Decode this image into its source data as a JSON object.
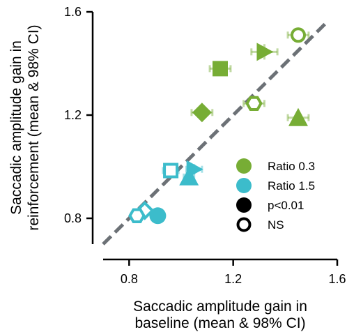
{
  "chart_data": {
    "type": "scatter",
    "xlabel": [
      "Saccadic amplitude gain in",
      "baseline (mean & 98% CI)"
    ],
    "ylabel": [
      "Saccadic amplitude gain in",
      "reinforcement (mean & 98% CI)"
    ],
    "xlim": [
      0.7,
      1.6
    ],
    "ylim": [
      0.7,
      1.6
    ],
    "xticks": [
      0.8,
      1.2,
      1.6
    ],
    "yticks": [
      0.8,
      1.2,
      1.6
    ],
    "xtick_labels": [
      "0.8",
      "1.2",
      "1.6"
    ],
    "ytick_labels": [
      "0.8",
      "1.2",
      "1.6"
    ],
    "identity_line": true,
    "colors": {
      "ratio_0_3": "#77ad35",
      "ratio_1_5": "#3cbccb",
      "identity": "#6c7176"
    },
    "legend": {
      "placement": "lower-right",
      "entries": [
        {
          "label": "Ratio 0.3",
          "marker": "filled-circle",
          "color": "#77ad35"
        },
        {
          "label": "Ratio 1.5",
          "marker": "filled-circle",
          "color": "#3cbccb"
        },
        {
          "label": "p<0.01",
          "marker": "filled-circle",
          "color": "#000000"
        },
        {
          "label": "NS",
          "marker": "open-circle",
          "color": "#000000"
        }
      ]
    },
    "series": [
      {
        "group": "Ratio 0.3",
        "points": [
          {
            "marker": "circle",
            "filled": false,
            "x": 1.45,
            "y": 1.51,
            "xerr": 0.04,
            "yerr": 0.02
          },
          {
            "marker": "triangle-right",
            "filled": true,
            "x": 1.32,
            "y": 1.445,
            "xerr": 0.05,
            "yerr": 0.03
          },
          {
            "marker": "square",
            "filled": true,
            "x": 1.15,
            "y": 1.38,
            "xerr": 0.04,
            "yerr": 0.02
          },
          {
            "marker": "hexagon",
            "filled": false,
            "x": 1.28,
            "y": 1.245,
            "xerr": 0.04,
            "yerr": 0.02
          },
          {
            "marker": "diamond",
            "filled": true,
            "x": 1.08,
            "y": 1.21,
            "xerr": 0.04,
            "yerr": 0.02
          },
          {
            "marker": "triangle-up",
            "filled": true,
            "x": 1.45,
            "y": 1.19,
            "xerr": 0.04,
            "yerr": 0.02
          }
        ]
      },
      {
        "group": "Ratio 1.5",
        "points": [
          {
            "marker": "square",
            "filled": false,
            "x": 0.96,
            "y": 0.985,
            "xerr": 0.03,
            "yerr": 0.02
          },
          {
            "marker": "triangle-right",
            "filled": true,
            "x": 1.05,
            "y": 0.99,
            "xerr": 0.03,
            "yerr": 0.02
          },
          {
            "marker": "triangle-up",
            "filled": true,
            "x": 1.03,
            "y": 0.96,
            "xerr": 0.02,
            "yerr": 0.02
          },
          {
            "marker": "circle",
            "filled": true,
            "x": 0.91,
            "y": 0.81,
            "xerr": 0.02,
            "yerr": 0.02
          },
          {
            "marker": "diamond",
            "filled": false,
            "x": 0.86,
            "y": 0.83,
            "xerr": 0.02,
            "yerr": 0.02
          },
          {
            "marker": "hexagon",
            "filled": false,
            "x": 0.83,
            "y": 0.81,
            "xerr": 0.02,
            "yerr": 0.02
          }
        ]
      }
    ]
  }
}
